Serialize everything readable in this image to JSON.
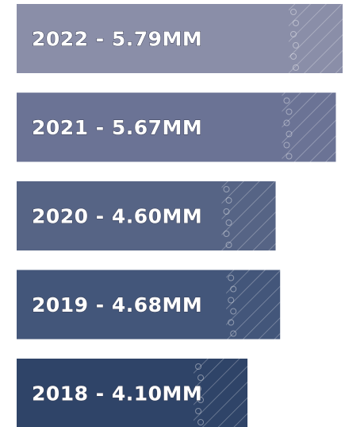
{
  "chart_data": {
    "type": "bar",
    "orientation": "horizontal",
    "labels": [
      "2022 - 5.79MM",
      "2021 - 5.67MM",
      "2020 - 4.60MM",
      "2019 - 4.68MM",
      "2018 - 4.10MM"
    ],
    "values": [
      5.79,
      5.67,
      4.6,
      4.68,
      4.1
    ],
    "colors": [
      "#8a8ea8",
      "#6b7395",
      "#566485",
      "#43567a",
      "#2f4468"
    ]
  }
}
